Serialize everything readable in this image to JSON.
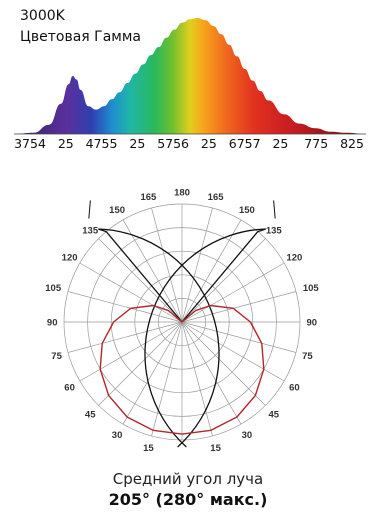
{
  "spectrum": {
    "cct": "3000K",
    "title": "Цветовая Гамма",
    "tick_labels": [
      "3754",
      "25",
      "4755",
      "25",
      "5756",
      "25",
      "6757",
      "25",
      "775",
      "825"
    ]
  },
  "caption": {
    "label": "Средний угол луча",
    "value": "205° (280° макс.)"
  },
  "chart_data": [
    {
      "type": "area",
      "title": "Цветовая Гамма",
      "subtitle": "3000K",
      "xlabel": "",
      "ylabel": "",
      "x_tick_labels": [
        "3754",
        "25",
        "4755",
        "25",
        "5756",
        "25",
        "6757",
        "25",
        "775",
        "825"
      ],
      "xlim": [
        375,
        825
      ],
      "ylim": [
        0,
        1
      ],
      "fill": "visible-spectrum rainbow gradient (violet to red)",
      "series": [
        {
          "x": [
            375,
            400,
            420,
            435,
            445,
            450,
            455,
            460,
            470,
            480,
            490,
            500,
            510,
            520,
            530,
            540,
            550,
            560,
            570,
            580,
            590,
            600,
            610,
            620,
            630,
            640,
            650,
            660,
            670,
            680,
            690,
            700,
            720,
            740,
            760,
            780,
            800,
            825
          ],
          "y": [
            0.0,
            0.01,
            0.08,
            0.26,
            0.43,
            0.5,
            0.47,
            0.38,
            0.24,
            0.21,
            0.24,
            0.3,
            0.36,
            0.44,
            0.52,
            0.6,
            0.68,
            0.75,
            0.83,
            0.9,
            0.96,
            0.99,
            1.0,
            0.98,
            0.93,
            0.86,
            0.77,
            0.67,
            0.56,
            0.46,
            0.37,
            0.29,
            0.17,
            0.09,
            0.05,
            0.02,
            0.01,
            0.0
          ]
        }
      ]
    },
    {
      "type": "line",
      "subtype": "polar",
      "title": "",
      "angle_unit": "degrees",
      "angle_labels": [
        "15",
        "30",
        "45",
        "60",
        "75",
        "90",
        "105",
        "120",
        "135",
        "150",
        "165",
        "180"
      ],
      "grid": true,
      "beam_angle_deg": 205,
      "max_beam_angle_deg": 280,
      "series": [
        {
          "color": "#b3262b",
          "theta_deg": [
            0,
            15,
            30,
            45,
            60,
            75,
            90,
            105,
            120,
            130,
            140
          ],
          "r": [
            0.95,
            0.95,
            0.93,
            0.88,
            0.8,
            0.7,
            0.58,
            0.45,
            0.28,
            0.15,
            0.0
          ]
        }
      ]
    }
  ]
}
